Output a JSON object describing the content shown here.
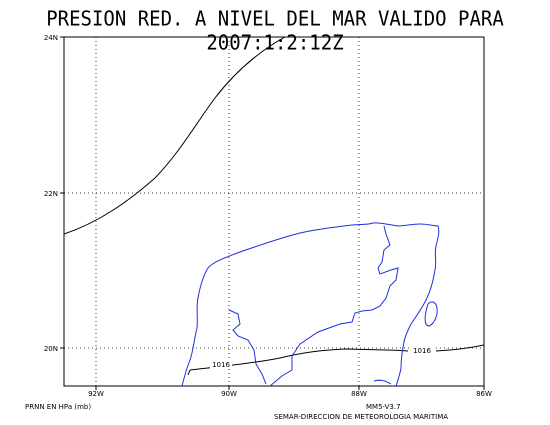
{
  "title": "PRESION RED. A NIVEL DEL MAR VALIDO PARA 2007:1:2:12Z",
  "axes": {
    "lat_labels": [
      "24N",
      "22N",
      "20N"
    ],
    "lon_labels": [
      "92W",
      "90W",
      "88W",
      "86W"
    ],
    "lon_range": [
      -92.5,
      -86
    ],
    "lat_range": [
      19.5,
      24
    ]
  },
  "contours": [
    {
      "label": "1016",
      "level": 1016
    }
  ],
  "colors": {
    "coastline": "#1f2fe0",
    "contour": "#000000",
    "grid": "#000000"
  },
  "footer": {
    "variable": "PRNN EN HPa (mb)",
    "model": "MM5-V3.7",
    "organization": "SEMAR-DIRECCION DE METEOROLOGIA MARITIMA"
  }
}
